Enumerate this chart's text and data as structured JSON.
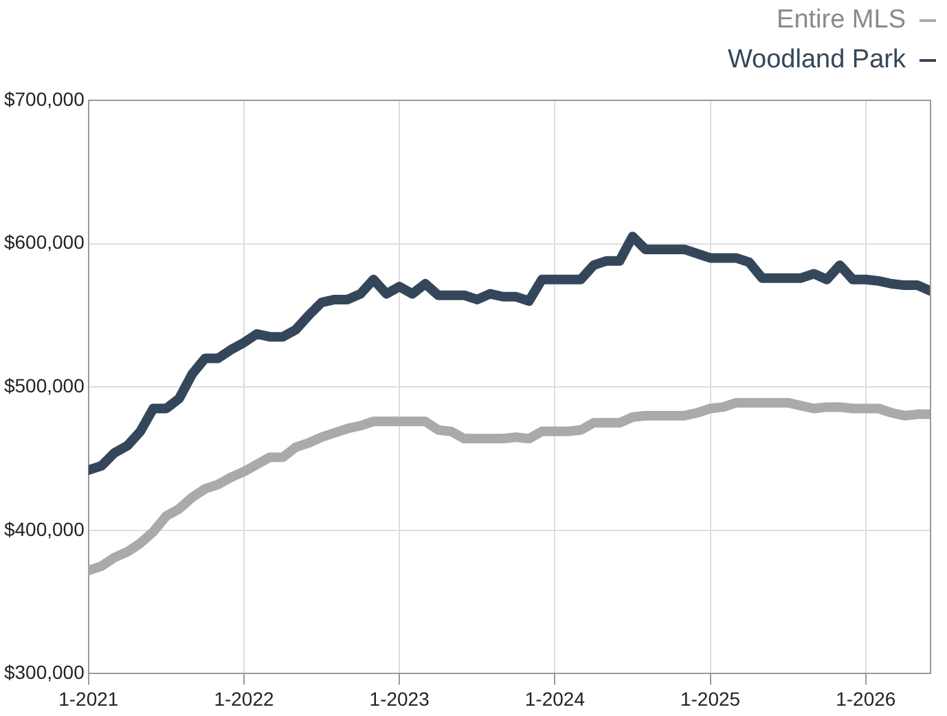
{
  "chart_data": {
    "type": "line",
    "x": [
      "2021-01",
      "2021-02",
      "2021-03",
      "2021-04",
      "2021-05",
      "2021-06",
      "2021-07",
      "2021-08",
      "2021-09",
      "2021-10",
      "2021-11",
      "2021-12",
      "2022-01",
      "2022-02",
      "2022-03",
      "2022-04",
      "2022-05",
      "2022-06",
      "2022-07",
      "2022-08",
      "2022-09",
      "2022-10",
      "2022-11",
      "2022-12",
      "2023-01",
      "2023-02",
      "2023-03",
      "2023-04",
      "2023-05",
      "2023-06",
      "2023-07",
      "2023-08",
      "2023-09",
      "2023-10",
      "2023-11",
      "2023-12",
      "2024-01",
      "2024-02",
      "2024-03",
      "2024-04",
      "2024-05",
      "2024-06",
      "2024-07",
      "2024-08",
      "2024-09",
      "2024-10",
      "2024-11",
      "2024-12",
      "2025-01",
      "2025-02",
      "2025-03",
      "2025-04",
      "2025-05",
      "2025-06",
      "2025-07",
      "2025-08",
      "2025-09",
      "2025-10",
      "2025-11",
      "2025-12",
      "2026-01",
      "2026-02",
      "2026-03",
      "2026-04",
      "2026-05",
      "2026-06"
    ],
    "series": [
      {
        "name": "Entire MLS",
        "color": "#aaaaaa",
        "values": [
          372000,
          375000,
          381000,
          385000,
          391000,
          399000,
          410000,
          415000,
          423000,
          429000,
          432000,
          437000,
          441000,
          446000,
          451000,
          451000,
          458000,
          461000,
          465000,
          468000,
          471000,
          473000,
          476000,
          476000,
          476000,
          476000,
          476000,
          470000,
          469000,
          464000,
          464000,
          464000,
          464000,
          465000,
          464000,
          469000,
          469000,
          469000,
          470000,
          475000,
          475000,
          475000,
          479000,
          480000,
          480000,
          480000,
          480000,
          482000,
          485000,
          486000,
          489000,
          489000,
          489000,
          489000,
          489000,
          487000,
          485000,
          486000,
          486000,
          485000,
          485000,
          485000,
          482000,
          480000,
          481000,
          481000
        ]
      },
      {
        "name": "Woodland Park",
        "color": "#34475a",
        "values": [
          442000,
          445000,
          454000,
          459000,
          469000,
          485000,
          485000,
          492000,
          509000,
          520000,
          520000,
          526000,
          531000,
          537000,
          535000,
          535000,
          540000,
          550000,
          559000,
          561000,
          561000,
          565000,
          575000,
          565000,
          570000,
          565000,
          572000,
          564000,
          564000,
          564000,
          561000,
          565000,
          563000,
          563000,
          560000,
          575000,
          575000,
          575000,
          575000,
          585000,
          588000,
          588000,
          605000,
          596000,
          596000,
          596000,
          596000,
          593000,
          590000,
          590000,
          590000,
          587000,
          576000,
          576000,
          576000,
          576000,
          579000,
          575000,
          585000,
          575000,
          575000,
          574000,
          572000,
          571000,
          571000,
          567000
        ]
      }
    ],
    "xlim": [
      "2021-01",
      "2026-06"
    ],
    "xticks": [
      {
        "value": "2021-01",
        "label": "1-2021"
      },
      {
        "value": "2022-01",
        "label": "1-2022"
      },
      {
        "value": "2023-01",
        "label": "1-2023"
      },
      {
        "value": "2024-01",
        "label": "1-2024"
      },
      {
        "value": "2025-01",
        "label": "1-2025"
      },
      {
        "value": "2026-01",
        "label": "1-2026"
      }
    ],
    "ylim": [
      300000,
      700000
    ],
    "yticks": [
      {
        "value": 300000,
        "label": "$300,000"
      },
      {
        "value": 400000,
        "label": "$400,000"
      },
      {
        "value": 500000,
        "label": "$500,000"
      },
      {
        "value": 600000,
        "label": "$600,000"
      },
      {
        "value": 700000,
        "label": "$700,000"
      }
    ],
    "grid": true,
    "legend": "top right",
    "marker": "none",
    "line_style": "solid"
  }
}
